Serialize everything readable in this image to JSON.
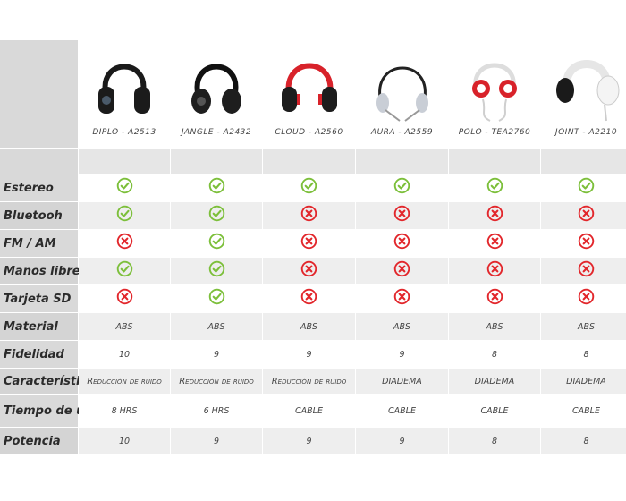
{
  "products": [
    {
      "name": "DIPLO - A2513",
      "icon": "headphones-black-icon"
    },
    {
      "name": "JANGLE - A2432",
      "icon": "headphones-black-icon"
    },
    {
      "name": "CLOUD - A2560",
      "icon": "headphones-red-icon"
    },
    {
      "name": "AURA - A2559",
      "icon": "headphones-silver-icon"
    },
    {
      "name": "POLO - TEA2760",
      "icon": "headphones-white-red-icon"
    },
    {
      "name": "JOINT - A2210",
      "icon": "headphones-white-icon"
    }
  ],
  "features": [
    {
      "label": "Estereo",
      "values": [
        "yes",
        "yes",
        "yes",
        "yes",
        "yes",
        "yes"
      ]
    },
    {
      "label": "Bluetooh",
      "values": [
        "yes",
        "yes",
        "no",
        "no",
        "no",
        "no"
      ]
    },
    {
      "label": "FM / AM",
      "values": [
        "no",
        "yes",
        "no",
        "no",
        "no",
        "no"
      ]
    },
    {
      "label": "Manos libres",
      "values": [
        "yes",
        "yes",
        "no",
        "no",
        "no",
        "no"
      ]
    },
    {
      "label": "Tarjeta SD",
      "values": [
        "no",
        "yes",
        "no",
        "no",
        "no",
        "no"
      ]
    }
  ],
  "specs": [
    {
      "label": "Material",
      "values": [
        "ABS",
        "ABS",
        "ABS",
        "ABS",
        "ABS",
        "ABS"
      ]
    },
    {
      "label": "Fidelidad",
      "values": [
        "10",
        "9",
        "9",
        "9",
        "8",
        "8"
      ]
    },
    {
      "label": "Característica",
      "values": [
        "Reducción de ruido",
        "Reducción de ruido",
        "Reducción de ruido",
        "DIADEMA",
        "DIADEMA",
        "DIADEMA"
      ]
    },
    {
      "label": "Tiempo de uso",
      "values": [
        "8 HRS",
        "6 HRS",
        "CABLE",
        "CABLE",
        "CABLE",
        "CABLE"
      ]
    },
    {
      "label": "Potencia",
      "values": [
        "10",
        "9",
        "9",
        "9",
        "8",
        "8"
      ]
    }
  ],
  "colors": {
    "check": "#7cbf3a",
    "cross": "#e2262b"
  }
}
